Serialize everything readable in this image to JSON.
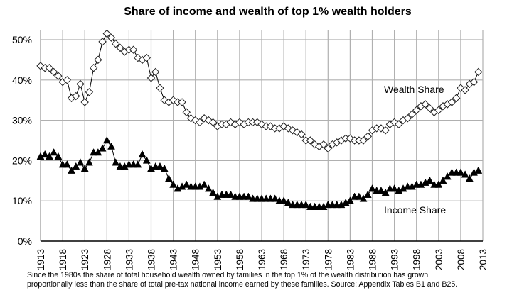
{
  "chart_data": {
    "type": "line",
    "title": "Share of income and wealth of top 1% wealth holders",
    "xlabel": "",
    "ylabel": "",
    "xlim": [
      1913,
      2013
    ],
    "ylim": [
      0,
      50
    ],
    "grid": true,
    "x_tick_labels": [
      "1913",
      "1918",
      "1923",
      "1928",
      "1933",
      "1938",
      "1943",
      "1948",
      "1953",
      "1958",
      "1963",
      "1968",
      "1973",
      "1978",
      "1983",
      "1988",
      "1993",
      "1998",
      "2003",
      "2008",
      "2013"
    ],
    "y_tick_labels": [
      "0%",
      "10%",
      "20%",
      "30%",
      "40%",
      "50%"
    ],
    "y_ticks": [
      0,
      10,
      20,
      30,
      40,
      50
    ],
    "x": [
      1913,
      1914,
      1915,
      1916,
      1917,
      1918,
      1919,
      1920,
      1921,
      1922,
      1923,
      1924,
      1925,
      1926,
      1927,
      1928,
      1929,
      1930,
      1931,
      1932,
      1933,
      1934,
      1935,
      1936,
      1937,
      1938,
      1939,
      1940,
      1941,
      1942,
      1943,
      1944,
      1945,
      1946,
      1947,
      1948,
      1949,
      1950,
      1951,
      1952,
      1953,
      1954,
      1955,
      1956,
      1957,
      1958,
      1959,
      1960,
      1961,
      1962,
      1963,
      1964,
      1965,
      1966,
      1967,
      1968,
      1969,
      1970,
      1971,
      1972,
      1973,
      1974,
      1975,
      1976,
      1977,
      1978,
      1979,
      1980,
      1981,
      1982,
      1983,
      1984,
      1985,
      1986,
      1987,
      1988,
      1989,
      1990,
      1991,
      1992,
      1993,
      1994,
      1995,
      1996,
      1997,
      1998,
      1999,
      2000,
      2001,
      2002,
      2003,
      2004,
      2005,
      2006,
      2007,
      2008,
      2009,
      2010,
      2011,
      2012
    ],
    "series": [
      {
        "name": "Wealth Share",
        "marker": "open-diamond",
        "values": [
          43.5,
          43,
          43,
          42,
          41,
          39.5,
          40,
          35.5,
          36,
          39,
          34.5,
          37,
          43,
          45,
          49.5,
          51.5,
          50.5,
          49,
          48,
          47,
          47.5,
          47.5,
          45.5,
          45,
          45.5,
          40.5,
          42,
          38,
          35,
          34.5,
          35,
          34.5,
          34.5,
          32,
          30.5,
          30,
          29.5,
          30.5,
          30,
          29.5,
          28.5,
          29,
          29,
          29.5,
          29,
          29.5,
          29,
          29.5,
          29.5,
          29.5,
          29,
          28.5,
          28.5,
          28,
          28,
          28.5,
          28,
          27.5,
          27,
          26.5,
          25,
          25,
          24,
          23.5,
          24,
          23,
          24,
          24.5,
          25,
          25.5,
          25.5,
          25,
          25,
          25,
          26,
          27.5,
          28,
          28,
          27.5,
          29,
          29.5,
          29,
          30,
          30.5,
          31.5,
          32.5,
          33.5,
          34,
          33,
          32,
          32.5,
          33.5,
          34,
          34.5,
          35.5,
          38,
          37.5,
          39,
          39.5,
          42
        ]
      },
      {
        "name": "Income Share",
        "marker": "filled-triangle",
        "values": [
          21,
          21.5,
          21,
          22,
          21,
          19,
          19,
          17.5,
          18.5,
          19.5,
          18,
          19.5,
          22,
          22,
          23,
          25,
          23.5,
          19.5,
          18.5,
          18.5,
          19,
          19,
          19,
          21.5,
          20,
          18,
          18.5,
          18.5,
          18,
          15.5,
          14,
          13,
          13.5,
          14,
          13.5,
          13.5,
          13.5,
          14,
          13,
          12,
          11,
          11.5,
          11.5,
          11.5,
          11,
          11,
          11,
          11,
          10.5,
          10.5,
          10.5,
          10.5,
          10.5,
          10.5,
          10,
          10,
          9.5,
          9,
          9,
          9,
          9,
          8.5,
          8.5,
          8.5,
          8.5,
          9,
          9,
          9,
          9,
          9.5,
          10,
          11,
          11,
          10.5,
          11.5,
          13,
          12.5,
          12.5,
          12,
          13,
          13,
          12.5,
          13,
          13.5,
          13.5,
          14,
          14,
          14.5,
          15,
          14,
          14,
          15,
          16,
          17,
          17,
          17,
          16.5,
          15.5,
          17,
          17.5
        ]
      }
    ],
    "annotations": [
      "Wealth Share",
      "Income Share"
    ],
    "colors": {
      "line": "#000000",
      "grid": "#b0b0b0",
      "marker_fill_wealth": "#ffffff",
      "marker_fill_income": "#000000"
    }
  },
  "caption": {
    "line1": "Since the 1980s the share of total household wealth owned by families in the top 1% of the wealth distribution has grown",
    "line2": "proportionally less than the share of total pre-tax national income earned by these families. Source: Appendix Tables B1 and B25."
  }
}
